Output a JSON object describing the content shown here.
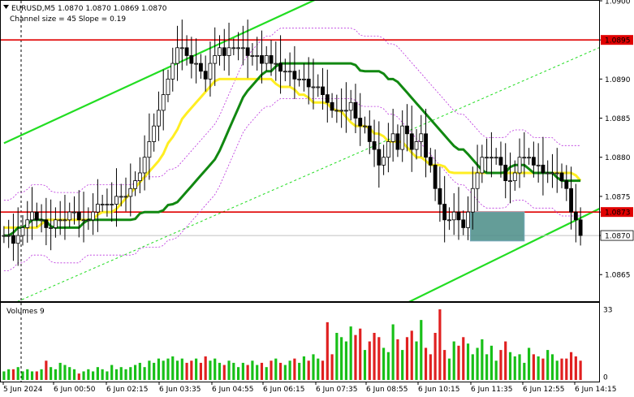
{
  "header": {
    "title": "EURUSD,M5  1.0870 1.0870 1.0869 1.0870",
    "subtitle": "Channel size = 45 Slope = 0.19"
  },
  "volume_panel": {
    "label": "Volumes 9"
  },
  "colors": {
    "candles": "#000000",
    "bg": "#ffffff",
    "level_line": "#e00000",
    "channel": "#22dd22",
    "ma_fast": "#118811",
    "ma_slow": "#ffee22",
    "envelope": "#bb33dd",
    "zone": "#4f8f8a",
    "volume": "#18c018",
    "volume_down": "#e02020"
  },
  "chart_data": [
    {
      "type": "candlestick",
      "symbol": "EURUSD",
      "timeframe": "M5",
      "ohlc_last": {
        "open": 1.087,
        "high": 1.087,
        "low": 1.0869,
        "close": 1.087
      },
      "ylim": [
        1.08616,
        1.09
      ],
      "y_ticks": [
        1.09,
        1.0895,
        1.089,
        1.0885,
        1.088,
        1.0875,
        1.0873,
        1.087,
        1.0865
      ],
      "y_tick_labels": [
        "1.0900",
        "1.0895",
        "1.0890",
        "1.0885",
        "1.0880",
        "1.0875",
        "1.0873",
        "1.0870",
        "1.0865"
      ],
      "highlighted_ticks": [
        "1.0895",
        "1.0873"
      ],
      "x_labels": [
        "5 Jun 2024",
        "6 Jun 00:50",
        "6 Jun 02:15",
        "6 Jun 03:35",
        "6 Jun 04:55",
        "6 Jun 06:15",
        "6 Jun 07:35",
        "6 Jun 08:55",
        "6 Jun 10:15",
        "6 Jun 11:35",
        "6 Jun 12:55",
        "6 Jun 14:15"
      ],
      "horizontal_levels": [
        1.0895,
        1.0873
      ],
      "current_price": 1.087,
      "close": [
        1.087,
        1.087,
        1.0869,
        1.087,
        1.0871,
        1.0872,
        1.0873,
        1.0872,
        1.0872,
        1.0871,
        1.0871,
        1.0872,
        1.0872,
        1.0872,
        1.0873,
        1.0873,
        1.0872,
        1.0872,
        1.0872,
        1.0873,
        1.0874,
        1.0874,
        1.0874,
        1.0874,
        1.0875,
        1.0875,
        1.0875,
        1.0876,
        1.0877,
        1.0878,
        1.088,
        1.0882,
        1.0884,
        1.0886,
        1.0888,
        1.089,
        1.0892,
        1.0894,
        1.0894,
        1.0893,
        1.0892,
        1.0892,
        1.0891,
        1.089,
        1.0892,
        1.0893,
        1.0894,
        1.0893,
        1.0894,
        1.0894,
        1.0894,
        1.0894,
        1.0893,
        1.0893,
        1.0893,
        1.0892,
        1.0893,
        1.0892,
        1.0892,
        1.0891,
        1.0891,
        1.0891,
        1.089,
        1.089,
        1.089,
        1.0889,
        1.0889,
        1.0889,
        1.0888,
        1.0887,
        1.0886,
        1.0886,
        1.0886,
        1.0886,
        1.0887,
        1.0885,
        1.0884,
        1.0884,
        1.0882,
        1.0881,
        1.0879,
        1.088,
        1.0882,
        1.0883,
        1.0881,
        1.0884,
        1.0883,
        1.0881,
        1.0882,
        1.0883,
        1.088,
        1.0879,
        1.0876,
        1.0874,
        1.0872,
        1.0872,
        1.0873,
        1.0872,
        1.0871,
        1.0873,
        1.0876,
        1.0878,
        1.088,
        1.088,
        1.088,
        1.088,
        1.0879,
        1.0877,
        1.0877,
        1.0878,
        1.088,
        1.088,
        1.088,
        1.0879,
        1.0879,
        1.0878,
        1.0878,
        1.0878,
        1.0878,
        1.0877,
        1.0876,
        1.0873,
        1.0872,
        1.087
      ],
      "ma_fast": [
        1.087,
        1.087,
        1.0871,
        1.0871,
        1.0872,
        1.0872,
        1.0872,
        1.0871,
        1.0871,
        1.0871,
        1.0871,
        1.0871,
        1.0872,
        1.0872,
        1.0872,
        1.0872,
        1.0872,
        1.0872,
        1.0872,
        1.0872,
        1.0873,
        1.0873,
        1.0873,
        1.0873,
        1.0874,
        1.0874,
        1.0875,
        1.0876,
        1.0877,
        1.0878,
        1.0879,
        1.088,
        1.0882,
        1.0884,
        1.0886,
        1.0888,
        1.0889,
        1.089,
        1.0891,
        1.0891,
        1.0892,
        1.0892,
        1.0892,
        1.0892,
        1.0892,
        1.0892,
        1.0892,
        1.0892,
        1.0892,
        1.0892,
        1.0892,
        1.0892,
        1.0891,
        1.0891,
        1.0891,
        1.0891,
        1.089,
        1.089,
        1.0889,
        1.0888,
        1.0887,
        1.0886,
        1.0885,
        1.0884,
        1.0883,
        1.0882,
        1.0881,
        1.0881,
        1.088,
        1.0879,
        1.0878,
        1.0878,
        1.0878,
        1.0878,
        1.0879,
        1.0879,
        1.0879,
        1.0878,
        1.0878,
        1.0878,
        1.0878,
        1.0877,
        1.0877,
        1.0877,
        1.0877
      ],
      "ma_slow": [
        1.0871,
        1.0871,
        1.0871,
        1.0871,
        1.0871,
        1.0871,
        1.0872,
        1.0872,
        1.0872,
        1.0872,
        1.0872,
        1.0872,
        1.0872,
        1.0872,
        1.0873,
        1.0873,
        1.0873,
        1.0874,
        1.0875,
        1.0876,
        1.0877,
        1.0878,
        1.0879,
        1.088,
        1.0882,
        1.0883,
        1.0885,
        1.0886,
        1.0887,
        1.0888,
        1.0889,
        1.089,
        1.089,
        1.089,
        1.089,
        1.089,
        1.089,
        1.089,
        1.089,
        1.089,
        1.0889,
        1.0889,
        1.0889,
        1.0888,
        1.0888,
        1.0887,
        1.0887,
        1.0887,
        1.0886,
        1.0886,
        1.0885,
        1.0884,
        1.0884,
        1.0884,
        1.0883,
        1.0883,
        1.0882,
        1.0882,
        1.0882,
        1.0881,
        1.088,
        1.088,
        1.0879,
        1.0879,
        1.0879,
        1.0878,
        1.0878,
        1.0878,
        1.0878,
        1.0878,
        1.0878,
        1.0878,
        1.0878,
        1.0878,
        1.0878,
        1.0878,
        1.0878,
        1.0878,
        1.0878,
        1.0878,
        1.0878,
        1.0878,
        1.0878,
        1.0878,
        1.0877
      ],
      "volumes": [
        4,
        5,
        5,
        6,
        4,
        5,
        4,
        4,
        5,
        9,
        6,
        5,
        8,
        7,
        6,
        5,
        3,
        4,
        5,
        4,
        6,
        5,
        4,
        7,
        5,
        6,
        5,
        6,
        7,
        8,
        6,
        9,
        8,
        10,
        9,
        10,
        11,
        9,
        10,
        8,
        9,
        10,
        8,
        11,
        9,
        10,
        8,
        7,
        9,
        8,
        6,
        8,
        7,
        9,
        7,
        8,
        6,
        9,
        10,
        8,
        7,
        9,
        10,
        8,
        11,
        9,
        12,
        10,
        9,
        27,
        12,
        22,
        20,
        18,
        25,
        21,
        24,
        14,
        18,
        22,
        20,
        15,
        13,
        26,
        19,
        14,
        20,
        23,
        18,
        28,
        15,
        12,
        22,
        33,
        14,
        10,
        18,
        16,
        20,
        17,
        12,
        15,
        19,
        12,
        16,
        9,
        14,
        18,
        13,
        11,
        12,
        8,
        15,
        12,
        11,
        10,
        14,
        12,
        9,
        10,
        10,
        13,
        11,
        9
      ],
      "volume_ylim": [
        0,
        33
      ],
      "volume_ticks": [
        "33",
        "0"
      ]
    }
  ]
}
